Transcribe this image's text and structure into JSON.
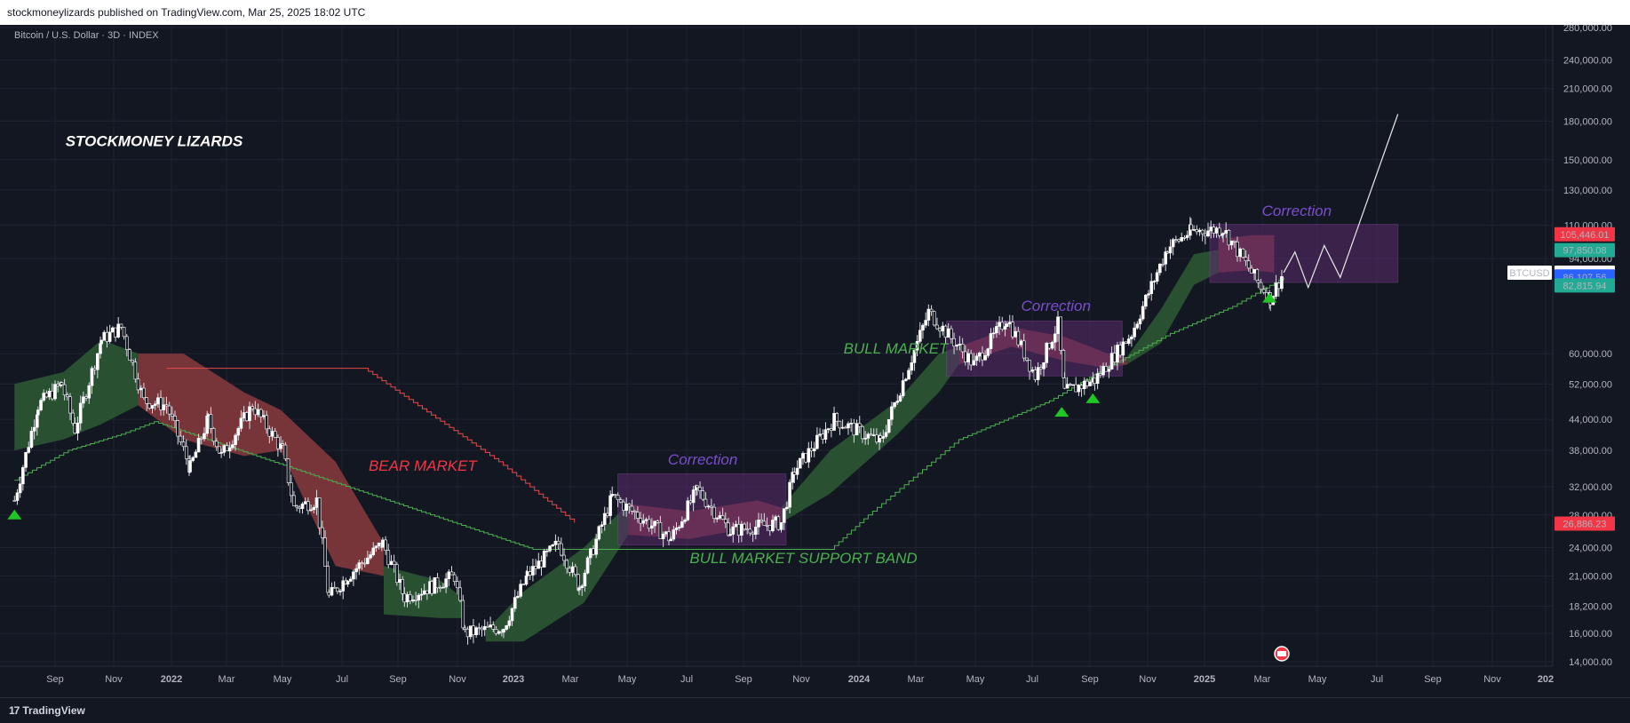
{
  "header": {
    "published": "stockmoneylizards published on TradingView.com, Mar 25, 2025 18:02 UTC"
  },
  "footer": {
    "logo_text": "TradingView",
    "logo_mark": "17"
  },
  "colors": {
    "background": "#131722",
    "candle_up": "#ffffff",
    "candle_down": "#ffffff",
    "bull_band": "#2e5a34",
    "bear_band": "#8a3a3d",
    "correction_box": "#5b2b6e",
    "support_line": "#4caf50",
    "bear_line": "#e84a4a",
    "red_tag": "#f23645",
    "green_tag": "#22ab94",
    "blue_tag": "#2962ff"
  },
  "chart_data": {
    "type": "candlestick",
    "title": "Bitcoin / U.S. Dollar · 3D · INDEX",
    "watermark": "STOCKMONEY LIZARDS",
    "scale": "log",
    "ylim": [
      13500,
      290000
    ],
    "x_ticks": [
      "Sep",
      "Nov",
      "2022",
      "Mar",
      "May",
      "Jul",
      "Sep",
      "Nov",
      "2023",
      "Mar",
      "May",
      "Jul",
      "Sep",
      "Nov",
      "2024",
      "Mar",
      "May",
      "Jul",
      "Sep",
      "Nov",
      "2025",
      "Mar",
      "May",
      "Jul",
      "Sep",
      "Nov",
      "202"
    ],
    "y_ticks": [
      {
        "label": "280,000.00",
        "value": 280000
      },
      {
        "label": "240,000.00",
        "value": 240000
      },
      {
        "label": "210,000.00",
        "value": 210000
      },
      {
        "label": "180,000.00",
        "value": 180000
      },
      {
        "label": "150,000.00",
        "value": 150000
      },
      {
        "label": "130,000.00",
        "value": 130000
      },
      {
        "label": "110,000.00",
        "value": 110000
      },
      {
        "label": "94,000.00",
        "value": 94000
      },
      {
        "label": "60,000.00",
        "value": 60000
      },
      {
        "label": "52,000.00",
        "value": 52000
      },
      {
        "label": "44,000.00",
        "value": 44000
      },
      {
        "label": "38,000.00",
        "value": 38000
      },
      {
        "label": "32,000.00",
        "value": 32000
      },
      {
        "label": "28,000.00",
        "value": 28000
      },
      {
        "label": "24,000.00",
        "value": 24000
      },
      {
        "label": "21,000.00",
        "value": 21000
      },
      {
        "label": "18,200.00",
        "value": 18200
      },
      {
        "label": "16,000.00",
        "value": 16000
      },
      {
        "label": "14,000.00",
        "value": 14000
      }
    ],
    "price_tags": [
      {
        "label": "105,446.01",
        "value": 105446,
        "color": "#f23645"
      },
      {
        "label": "97,850.08",
        "value": 97850,
        "color": "#22ab94"
      },
      {
        "label": "87,952.00",
        "value": 87952,
        "color": "#ffffff",
        "symbol": "BTCUSD"
      },
      {
        "label": "86,394.99",
        "value": 86395,
        "color": "#2962ff"
      },
      {
        "label": "86,107.56",
        "value": 86108,
        "color": "#2962ff"
      },
      {
        "label": "82,815.94",
        "value": 82816,
        "color": "#22ab94"
      },
      {
        "label": "26,886.23",
        "value": 26886,
        "color": "#f23645"
      }
    ],
    "price_path": [
      {
        "x": "2021-07-20",
        "y": 30000
      },
      {
        "x": "2021-08-14",
        "y": 47000
      },
      {
        "x": "2021-09-08",
        "y": 52000
      },
      {
        "x": "2021-09-22",
        "y": 42000
      },
      {
        "x": "2021-10-20",
        "y": 64000
      },
      {
        "x": "2021-11-10",
        "y": 68000
      },
      {
        "x": "2021-12-04",
        "y": 48000
      },
      {
        "x": "2021-12-28",
        "y": 47000
      },
      {
        "x": "2022-01-22",
        "y": 35000
      },
      {
        "x": "2022-02-10",
        "y": 44000
      },
      {
        "x": "2022-02-24",
        "y": 37000
      },
      {
        "x": "2022-03-29",
        "y": 47000
      },
      {
        "x": "2022-04-30",
        "y": 38000
      },
      {
        "x": "2022-05-12",
        "y": 29000
      },
      {
        "x": "2022-06-05",
        "y": 30000
      },
      {
        "x": "2022-06-18",
        "y": 19000
      },
      {
        "x": "2022-07-08",
        "y": 21000
      },
      {
        "x": "2022-08-14",
        "y": 24500
      },
      {
        "x": "2022-09-06",
        "y": 19000
      },
      {
        "x": "2022-10-05",
        "y": 20000
      },
      {
        "x": "2022-10-29",
        "y": 21000
      },
      {
        "x": "2022-11-09",
        "y": 16000
      },
      {
        "x": "2022-12-20",
        "y": 16500
      },
      {
        "x": "2023-01-14",
        "y": 21000
      },
      {
        "x": "2023-02-16",
        "y": 24500
      },
      {
        "x": "2023-03-10",
        "y": 20000
      },
      {
        "x": "2023-04-14",
        "y": 30500
      },
      {
        "x": "2023-06-15",
        "y": 25000
      },
      {
        "x": "2023-07-13",
        "y": 31500
      },
      {
        "x": "2023-08-17",
        "y": 26000
      },
      {
        "x": "2023-10-10",
        "y": 27000
      },
      {
        "x": "2023-10-24",
        "y": 34500
      },
      {
        "x": "2023-12-05",
        "y": 44000
      },
      {
        "x": "2024-01-23",
        "y": 39500
      },
      {
        "x": "2024-03-14",
        "y": 73000
      },
      {
        "x": "2024-05-01",
        "y": 57000
      },
      {
        "x": "2024-06-05",
        "y": 71000
      },
      {
        "x": "2024-07-05",
        "y": 54000
      },
      {
        "x": "2024-07-29",
        "y": 69000
      },
      {
        "x": "2024-08-05",
        "y": 50000
      },
      {
        "x": "2024-09-06",
        "y": 53000
      },
      {
        "x": "2024-10-15",
        "y": 66000
      },
      {
        "x": "2024-11-22",
        "y": 99000
      },
      {
        "x": "2024-12-17",
        "y": 107000
      },
      {
        "x": "2025-01-20",
        "y": 108000
      },
      {
        "x": "2025-02-26",
        "y": 84000
      },
      {
        "x": "2025-03-11",
        "y": 78000
      },
      {
        "x": "2025-03-25",
        "y": 88000
      }
    ],
    "projection_path": [
      {
        "x": "2025-03-25",
        "y": 88000
      },
      {
        "x": "2025-04-06",
        "y": 97000
      },
      {
        "x": "2025-04-20",
        "y": 82000
      },
      {
        "x": "2025-05-07",
        "y": 100000
      },
      {
        "x": "2025-05-24",
        "y": 86000
      },
      {
        "x": "2025-07-24",
        "y": 186000
      }
    ],
    "support_band_line": [
      {
        "x": "2021-07-20",
        "y": 33000
      },
      {
        "x": "2021-09-15",
        "y": 38000
      },
      {
        "x": "2021-11-10",
        "y": 41000
      },
      {
        "x": "2021-12-15",
        "y": 43500
      },
      {
        "x": "2023-01-20",
        "y": 23800
      },
      {
        "x": "2023-12-01",
        "y": 23800
      },
      {
        "x": "2024-01-10",
        "y": 28000
      },
      {
        "x": "2024-04-15",
        "y": 40000
      },
      {
        "x": "2024-07-20",
        "y": 48000
      },
      {
        "x": "2024-09-10",
        "y": 55000
      },
      {
        "x": "2024-11-25",
        "y": 66000
      },
      {
        "x": "2025-01-30",
        "y": 75000
      },
      {
        "x": "2025-03-25",
        "y": 86000
      }
    ],
    "bear_line": [
      {
        "x": "2021-12-28",
        "y": 56000
      },
      {
        "x": "2022-07-25",
        "y": 56000
      },
      {
        "x": "2022-12-15",
        "y": 36000
      },
      {
        "x": "2023-03-05",
        "y": 27000
      }
    ],
    "bands": [
      {
        "type": "bull",
        "points": [
          [
            "2021-07-20",
            38000,
            52000
          ],
          [
            "2021-09-10",
            40000,
            55000
          ],
          [
            "2021-10-20",
            43000,
            64000
          ],
          [
            "2021-11-28",
            47000,
            60000
          ]
        ]
      },
      {
        "type": "bear",
        "points": [
          [
            "2021-11-28",
            47000,
            60000
          ],
          [
            "2022-01-15",
            40000,
            60000
          ],
          [
            "2022-03-20",
            37000,
            50000
          ],
          [
            "2022-04-28",
            38000,
            46000
          ],
          [
            "2022-06-25",
            22000,
            36000
          ],
          [
            "2022-08-15",
            21000,
            24500
          ]
        ]
      },
      {
        "type": "bull",
        "points": [
          [
            "2022-08-15",
            17500,
            22000
          ],
          [
            "2022-10-15",
            17200,
            20500
          ],
          [
            "2022-11-05",
            17200,
            19000
          ]
        ]
      },
      {
        "type": "bull",
        "points": [
          [
            "2022-12-01",
            15400,
            16200
          ],
          [
            "2023-01-10",
            15400,
            19500
          ],
          [
            "2023-03-15",
            18500,
            24000
          ],
          [
            "2023-05-01",
            25500,
            29500
          ]
        ]
      },
      {
        "type": "bear",
        "points": [
          [
            "2023-05-01",
            25500,
            29500
          ],
          [
            "2023-07-05",
            25000,
            28500
          ],
          [
            "2023-09-15",
            26500,
            30000
          ],
          [
            "2023-10-10",
            27000,
            29000
          ]
        ]
      },
      {
        "type": "bull",
        "points": [
          [
            "2023-10-10",
            27000,
            29000
          ],
          [
            "2023-12-01",
            31000,
            38000
          ],
          [
            "2024-02-10",
            41000,
            48000
          ],
          [
            "2024-03-25",
            50000,
            60000
          ],
          [
            "2024-04-15",
            57000,
            62000
          ]
        ]
      },
      {
        "type": "bear",
        "points": [
          [
            "2024-04-15",
            57000,
            62000
          ],
          [
            "2024-06-10",
            62000,
            68000
          ],
          [
            "2024-08-05",
            58000,
            65000
          ],
          [
            "2024-09-20",
            56000,
            60000
          ],
          [
            "2024-10-10",
            57000,
            59000
          ]
        ]
      },
      {
        "type": "bull",
        "points": [
          [
            "2024-10-10",
            57000,
            59000
          ],
          [
            "2024-11-15",
            63000,
            74000
          ],
          [
            "2024-12-20",
            83000,
            96000
          ],
          [
            "2025-01-15",
            88000,
            98000
          ]
        ]
      },
      {
        "type": "bear",
        "points": [
          [
            "2025-01-15",
            88000,
            103000
          ],
          [
            "2025-02-20",
            89000,
            105000
          ],
          [
            "2025-03-15",
            88000,
            105000
          ]
        ]
      }
    ],
    "correction_boxes": [
      {
        "label": "Correction",
        "x_start": "2023-04-20",
        "x_end": "2023-10-15",
        "y_low": 24300,
        "y_high": 34000
      },
      {
        "label": "Correction",
        "x_start": "2024-04-02",
        "x_end": "2024-10-05",
        "y_low": 54000,
        "y_high": 70000
      },
      {
        "label": "Correction",
        "x_start": "2025-01-06",
        "x_end": "2025-07-24",
        "y_low": 84000,
        "y_high": 110500
      }
    ],
    "markers": [
      {
        "type": "up-triangle",
        "x": "2021-07-20",
        "y": 28000
      },
      {
        "type": "up-triangle",
        "x": "2024-08-02",
        "y": 45500
      },
      {
        "type": "up-triangle",
        "x": "2024-09-04",
        "y": 48500
      },
      {
        "type": "up-triangle",
        "x": "2025-03-10",
        "y": 78000
      }
    ],
    "annotations": [
      {
        "text": "STOCKMONEY LIZARDS",
        "x": "2021-09-12",
        "y": 160000,
        "color": "#ffffff",
        "size": 17
      },
      {
        "text": "BULL MARKET",
        "x": "2023-12-15",
        "y": 60000,
        "color": "#4caf50",
        "size": 17
      },
      {
        "text": "BEAR MARKET",
        "x": "2022-07-30",
        "y": 34500,
        "color": "#f23645",
        "size": 17
      },
      {
        "text": "BULL MARKET SUPPORT BAND",
        "x": "2023-07-05",
        "y": 22300,
        "color": "#4caf50",
        "size": 17
      },
      {
        "text": "Correction",
        "x": "2023-06-12",
        "y": 35500,
        "color": "#7c4dcc",
        "size": 17
      },
      {
        "text": "Correction",
        "x": "2024-06-20",
        "y": 73500,
        "color": "#7c4dcc",
        "size": 17
      },
      {
        "text": "Correction",
        "x": "2025-03-02",
        "y": 115000,
        "color": "#7c4dcc",
        "size": 17
      }
    ]
  }
}
